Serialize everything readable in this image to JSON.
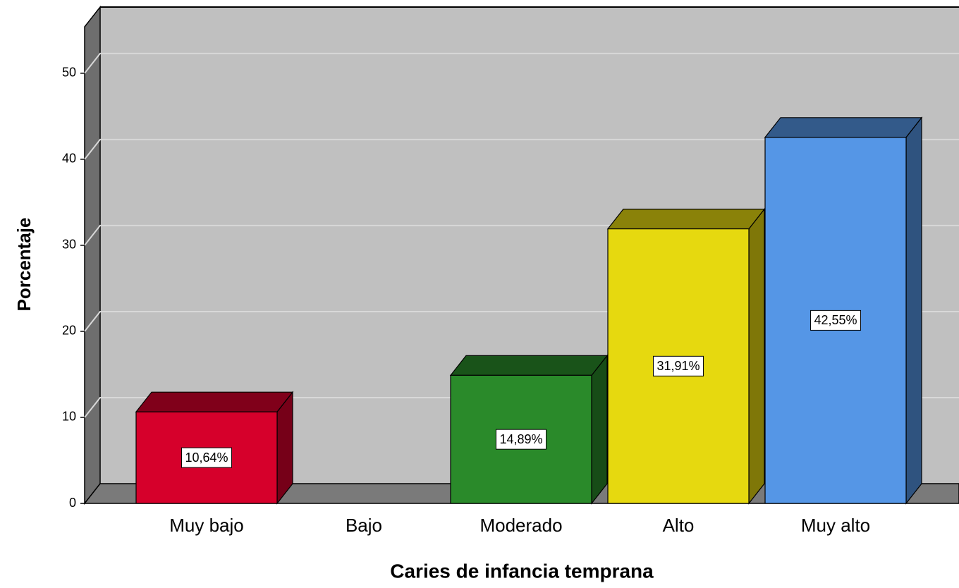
{
  "chart_data": {
    "type": "bar3d",
    "xlabel": "Caries de infancia temprana",
    "ylabel": "Porcentaje",
    "categories": [
      "Muy bajo",
      "Bajo",
      "Moderado",
      "Alto",
      "Muy alto"
    ],
    "values": [
      10.64,
      0,
      14.89,
      31.91,
      42.55
    ],
    "value_labels": [
      "10,64%",
      null,
      "14,89%",
      "31,91%",
      "42,55%"
    ],
    "colors": [
      "#d6002b",
      null,
      "#2a8a2a",
      "#e6d90f",
      "#5596e6"
    ],
    "ylim": [
      0,
      55.4
    ],
    "yticks": [
      0,
      10,
      20,
      30,
      40,
      50
    ],
    "grid": true
  }
}
